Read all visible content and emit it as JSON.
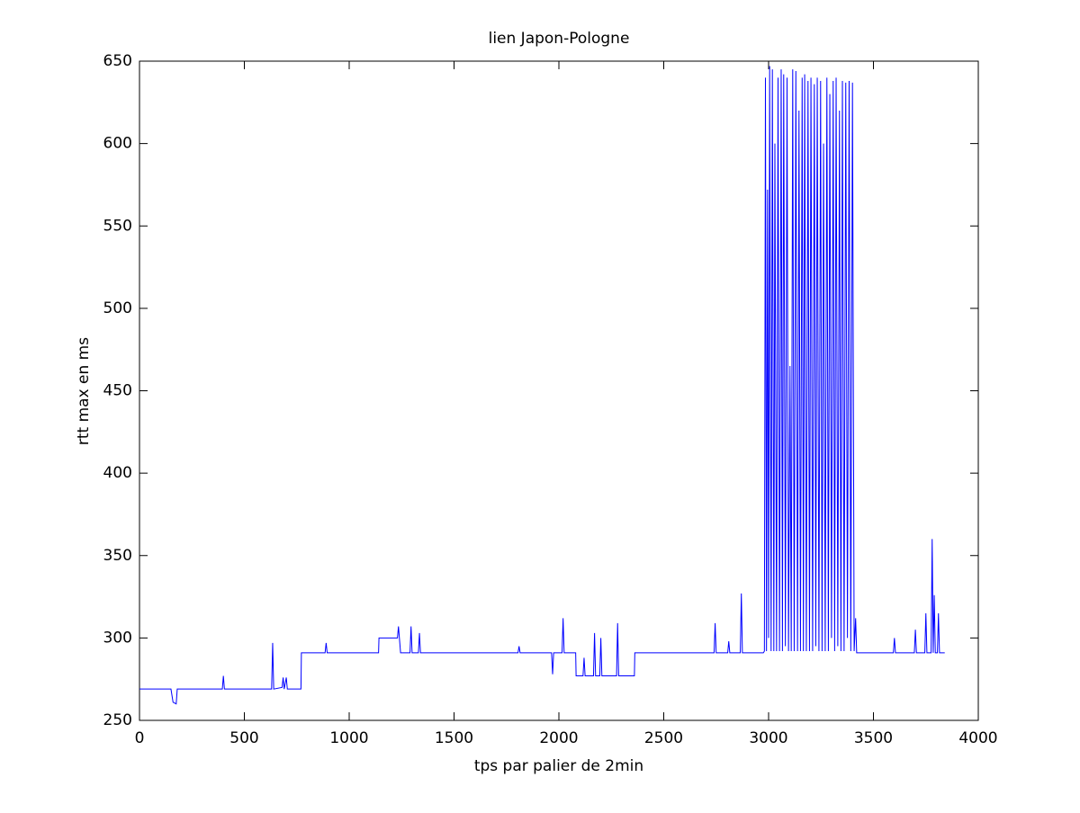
{
  "chart_data": {
    "type": "line",
    "title": "lien Japon-Pologne",
    "xlabel": "tps par palier de 2min",
    "ylabel": "rtt max en ms",
    "color": "#0000ff",
    "xlim": [
      0,
      4000
    ],
    "ylim": [
      250,
      650
    ],
    "xticks": [
      0,
      500,
      1000,
      1500,
      2000,
      2500,
      3000,
      3500,
      4000
    ],
    "yticks": [
      250,
      300,
      350,
      400,
      450,
      500,
      550,
      600,
      650
    ],
    "x": [
      0,
      150,
      160,
      175,
      180,
      395,
      400,
      405,
      630,
      635,
      640,
      680,
      685,
      690,
      700,
      705,
      770,
      772,
      885,
      890,
      895,
      1140,
      1142,
      1230,
      1235,
      1240,
      1245,
      1290,
      1295,
      1300,
      1330,
      1335,
      1340,
      1805,
      1810,
      1815,
      1965,
      1970,
      1975,
      2015,
      2020,
      2025,
      2080,
      2082,
      2115,
      2120,
      2125,
      2165,
      2170,
      2175,
      2195,
      2200,
      2205,
      2275,
      2280,
      2285,
      2360,
      2362,
      2740,
      2745,
      2750,
      2805,
      2810,
      2815,
      2865,
      2870,
      2875,
      2975,
      2980,
      2985,
      2990,
      2995,
      3000,
      3005,
      3012,
      3018,
      3025,
      3030,
      3038,
      3045,
      3052,
      3060,
      3066,
      3072,
      3080,
      3088,
      3095,
      3102,
      3108,
      3115,
      3122,
      3130,
      3138,
      3145,
      3152,
      3160,
      3166,
      3172,
      3180,
      3188,
      3195,
      3202,
      3210,
      3218,
      3225,
      3232,
      3240,
      3248,
      3255,
      3262,
      3270,
      3278,
      3285,
      3292,
      3300,
      3308,
      3315,
      3322,
      3330,
      3338,
      3345,
      3352,
      3360,
      3368,
      3376,
      3384,
      3392,
      3400,
      3408,
      3415,
      3420,
      3595,
      3600,
      3605,
      3695,
      3700,
      3705,
      3745,
      3750,
      3755,
      3775,
      3780,
      3785,
      3790,
      3795,
      3805,
      3810,
      3815,
      3840
    ],
    "values": [
      269,
      269,
      261,
      260,
      269,
      269,
      277,
      269,
      269,
      297,
      269,
      270,
      276,
      269,
      276,
      269,
      269,
      291,
      291,
      297,
      291,
      291,
      300,
      300,
      307,
      299,
      291,
      291,
      307,
      291,
      291,
      303,
      291,
      291,
      295,
      291,
      291,
      278,
      291,
      291,
      312,
      291,
      291,
      277,
      277,
      288,
      277,
      277,
      303,
      277,
      277,
      300,
      277,
      277,
      309,
      277,
      277,
      291,
      291,
      309,
      291,
      291,
      298,
      291,
      291,
      327,
      291,
      291,
      292,
      640,
      292,
      572,
      300,
      647,
      292,
      645,
      292,
      600,
      292,
      640,
      292,
      645,
      292,
      642,
      295,
      640,
      292,
      465,
      292,
      645,
      292,
      644,
      292,
      620,
      292,
      640,
      292,
      642,
      292,
      638,
      292,
      640,
      292,
      636,
      295,
      640,
      292,
      638,
      292,
      600,
      292,
      640,
      292,
      630,
      300,
      638,
      292,
      640,
      295,
      620,
      292,
      638,
      292,
      637,
      300,
      638,
      292,
      637,
      292,
      312,
      291,
      291,
      300,
      291,
      291,
      305,
      291,
      291,
      315,
      291,
      291,
      360,
      291,
      326,
      291,
      291,
      315,
      291,
      291
    ]
  }
}
